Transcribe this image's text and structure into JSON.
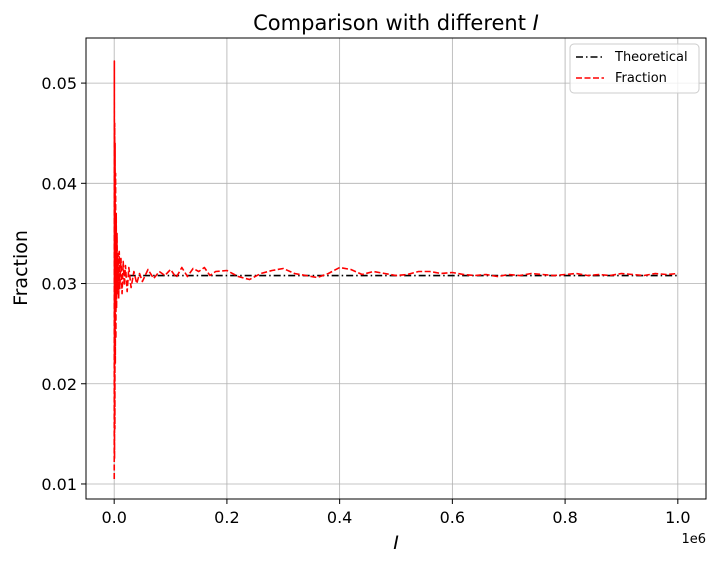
{
  "chart_data": {
    "type": "line",
    "title_prefix": "Comparison with different ",
    "title_var": "I",
    "xlabel": "I",
    "ylabel": "Fraction",
    "x_offset_label": "1e6",
    "xlim": [
      -50000,
      1050000
    ],
    "ylim": [
      0.0085,
      0.0545
    ],
    "x_ticks": [
      0,
      200000,
      400000,
      600000,
      800000,
      1000000
    ],
    "x_tick_labels": [
      "0.0",
      "0.2",
      "0.4",
      "0.6",
      "0.8",
      "1.0"
    ],
    "y_ticks": [
      0.01,
      0.02,
      0.03,
      0.04,
      0.05
    ],
    "y_tick_labels": [
      "0.01",
      "0.02",
      "0.03",
      "0.04",
      "0.05"
    ],
    "grid": true,
    "legend_position": "top-right",
    "series": [
      {
        "name": "Theoretical",
        "color": "#000000",
        "style": "dashdot",
        "x": [
          0,
          1000000
        ],
        "y": [
          0.0308,
          0.0308
        ]
      },
      {
        "name": "Fraction",
        "color": "#ff0000",
        "style": "dashed",
        "x": [
          100,
          300,
          600,
          900,
          1200,
          1600,
          2000,
          2500,
          3000,
          3600,
          4200,
          5000,
          6000,
          7000,
          8000,
          9000,
          10000,
          12000,
          14000,
          16000,
          18000,
          20000,
          23000,
          26000,
          30000,
          35000,
          40000,
          45000,
          50000,
          60000,
          70000,
          80000,
          90000,
          100000,
          110000,
          120000,
          130000,
          140000,
          150000,
          160000,
          170000,
          180000,
          200000,
          220000,
          240000,
          260000,
          280000,
          300000,
          320000,
          340000,
          360000,
          380000,
          400000,
          420000,
          440000,
          460000,
          480000,
          500000,
          520000,
          540000,
          560000,
          580000,
          600000,
          620000,
          640000,
          660000,
          680000,
          700000,
          720000,
          740000,
          760000,
          780000,
          800000,
          820000,
          840000,
          860000,
          880000,
          900000,
          920000,
          940000,
          960000,
          980000,
          1000000
        ],
        "y": [
          0.0105,
          0.0522,
          0.0125,
          0.046,
          0.0155,
          0.044,
          0.022,
          0.041,
          0.0245,
          0.037,
          0.0275,
          0.035,
          0.029,
          0.033,
          0.0285,
          0.0332,
          0.0295,
          0.0325,
          0.029,
          0.0322,
          0.0298,
          0.0318,
          0.0292,
          0.0316,
          0.0296,
          0.0312,
          0.03,
          0.031,
          0.0302,
          0.0314,
          0.0305,
          0.0312,
          0.0308,
          0.0314,
          0.0306,
          0.0316,
          0.0307,
          0.0315,
          0.0312,
          0.0316,
          0.0308,
          0.0312,
          0.0313,
          0.0307,
          0.0304,
          0.031,
          0.0313,
          0.0315,
          0.031,
          0.0308,
          0.0306,
          0.031,
          0.0316,
          0.0314,
          0.0309,
          0.0312,
          0.031,
          0.0308,
          0.0309,
          0.0312,
          0.0312,
          0.031,
          0.0311,
          0.0309,
          0.0308,
          0.0309,
          0.0307,
          0.0309,
          0.0308,
          0.031,
          0.0309,
          0.0308,
          0.0309,
          0.031,
          0.0308,
          0.0309,
          0.0308,
          0.031,
          0.0309,
          0.0308,
          0.031,
          0.0309,
          0.031
        ]
      }
    ]
  }
}
